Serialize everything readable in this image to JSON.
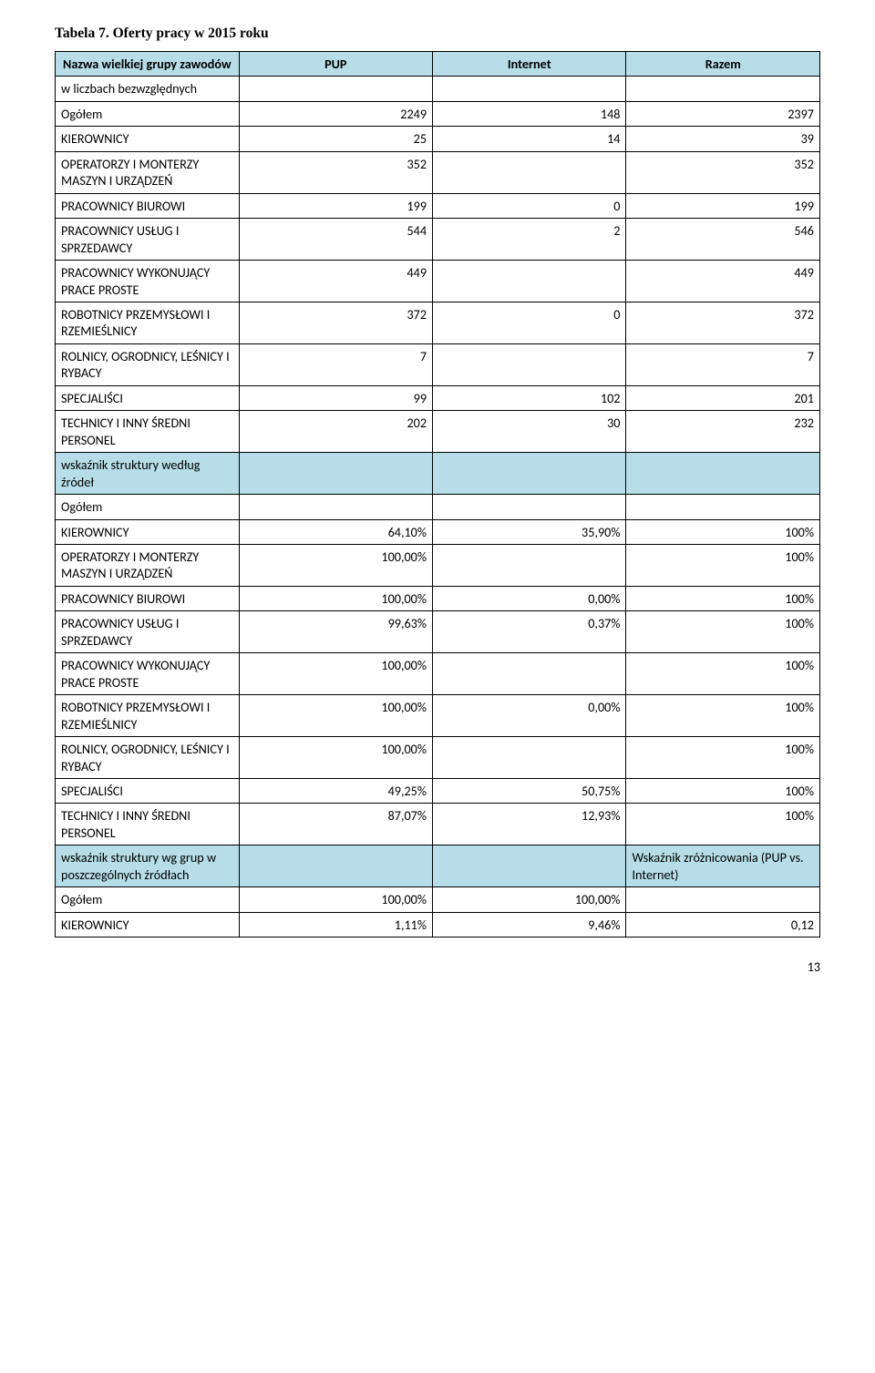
{
  "title": "Tabela 7. Oferty pracy w 2015 roku",
  "columns": {
    "c1": "Nazwa wielkiej grupy zawodów",
    "c2": "PUP",
    "c3": "Internet",
    "c4": "Razem"
  },
  "section1_label": "w liczbach bezwzględnych",
  "section1": [
    {
      "label": "Ogółem",
      "a": "2249",
      "b": "148",
      "c": "2397"
    },
    {
      "label": "KIEROWNICY",
      "a": "25",
      "b": "14",
      "c": "39"
    },
    {
      "label": "OPERATORZY I MONTERZY MASZYN I URZĄDZEŃ",
      "a": "352",
      "b": "",
      "c": "352"
    },
    {
      "label": "PRACOWNICY BIUROWI",
      "a": "199",
      "b": "0",
      "c": "199"
    },
    {
      "label": "PRACOWNICY USŁUG I SPRZEDAWCY",
      "a": "544",
      "b": "2",
      "c": "546"
    },
    {
      "label": "PRACOWNICY WYKONUJĄCY PRACE PROSTE",
      "a": "449",
      "b": "",
      "c": "449"
    },
    {
      "label": "ROBOTNICY PRZEMYSŁOWI I RZEMIEŚLNICY",
      "a": "372",
      "b": "0",
      "c": "372"
    },
    {
      "label": "ROLNICY, OGRODNICY, LEŚNICY I RYBACY",
      "a": "7",
      "b": "",
      "c": "7"
    },
    {
      "label": "SPECJALIŚCI",
      "a": "99",
      "b": "102",
      "c": "201"
    },
    {
      "label": "TECHNICY I INNY ŚREDNI PERSONEL",
      "a": "202",
      "b": "30",
      "c": "232"
    }
  ],
  "section2_label": "wskaźnik struktury według źródeł",
  "section2": [
    {
      "label": "Ogółem",
      "a": "",
      "b": "",
      "c": ""
    },
    {
      "label": "KIEROWNICY",
      "a": "64,10%",
      "b": "35,90%",
      "c": "100%"
    },
    {
      "label": "OPERATORZY I MONTERZY MASZYN I URZĄDZEŃ",
      "a": "100,00%",
      "b": "",
      "c": "100%"
    },
    {
      "label": "PRACOWNICY BIUROWI",
      "a": "100,00%",
      "b": "0,00%",
      "c": "100%"
    },
    {
      "label": "PRACOWNICY USŁUG I SPRZEDAWCY",
      "a": "99,63%",
      "b": "0,37%",
      "c": "100%"
    },
    {
      "label": "PRACOWNICY WYKONUJĄCY PRACE PROSTE",
      "a": "100,00%",
      "b": "",
      "c": "100%"
    },
    {
      "label": "ROBOTNICY PRZEMYSŁOWI I RZEMIEŚLNICY",
      "a": "100,00%",
      "b": "0,00%",
      "c": "100%"
    },
    {
      "label": "ROLNICY, OGRODNICY, LEŚNICY I RYBACY",
      "a": "100,00%",
      "b": "",
      "c": "100%"
    },
    {
      "label": "SPECJALIŚCI",
      "a": "49,25%",
      "b": "50,75%",
      "c": "100%"
    },
    {
      "label": "TECHNICY I INNY ŚREDNI PERSONEL",
      "a": "87,07%",
      "b": "12,93%",
      "c": "100%"
    }
  ],
  "section3_label": "wskaźnik struktury wg grup w poszczególnych źródłach",
  "section3_note": "Wskaźnik zróżnicowania (PUP vs. Internet)",
  "section3": [
    {
      "label": "Ogółem",
      "a": "100,00%",
      "b": "100,00%",
      "c": ""
    },
    {
      "label": "KIEROWNICY",
      "a": "1,11%",
      "b": "9,46%",
      "c": "0,12"
    }
  ],
  "page_number": "13",
  "colors": {
    "header_bg": "#b6dde8",
    "text": "#000000",
    "background": "#ffffff"
  }
}
